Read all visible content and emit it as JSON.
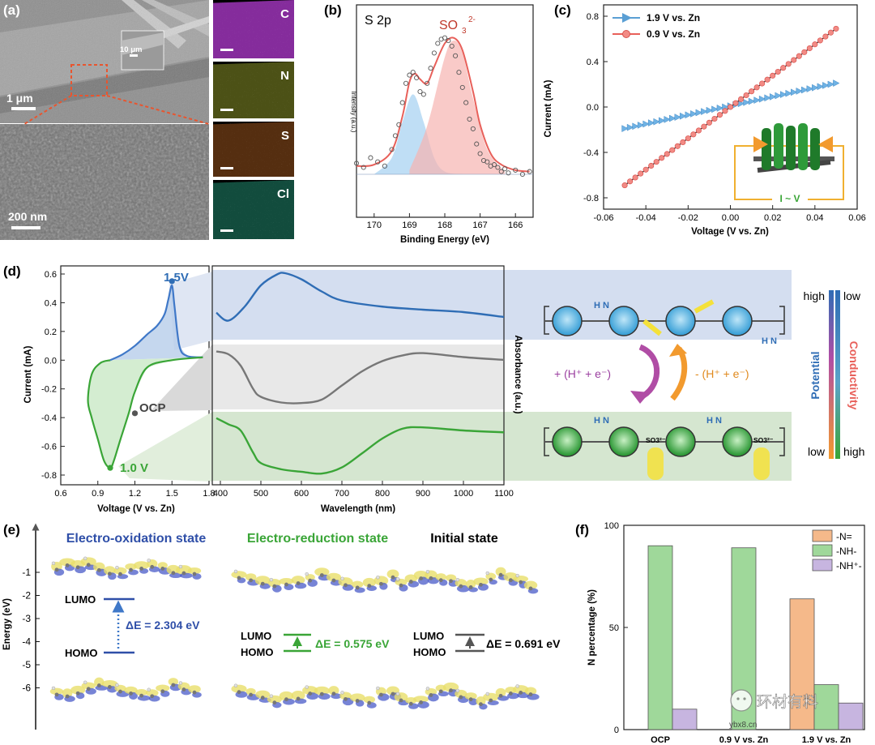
{
  "panel_labels": [
    "(a)",
    "(b)",
    "(c)",
    "(d)",
    "(e)",
    "(f)"
  ],
  "colors": {
    "blue": "#2f6db5",
    "red": "#d9534f",
    "green": "#3aa537",
    "orange": "#f29a2e",
    "purple": "#9b4fa8",
    "lilac": "#b9a3d1",
    "pale_green": "#9fd89a",
    "peach": "#f5b98a"
  },
  "panel_a": {
    "scale_top": "1 μm",
    "scale_inset": "10 μm",
    "scale_bottom": "200 nm",
    "eds_maps": [
      {
        "element": "C",
        "color": "#b13bd0"
      },
      {
        "element": "N",
        "color": "#c9d43a"
      },
      {
        "element": "S",
        "color": "#e07a2a"
      },
      {
        "element": "Cl",
        "color": "#2fc9a0"
      }
    ]
  },
  "panel_b": {
    "title": "S 2p",
    "peak_label": "SO",
    "peak_sub": "3",
    "peak_sup": "2-",
    "ylabel": "Intensity (a.u.)",
    "xlabel": "Binding Energy (eV)"
  },
  "panel_c": {
    "legend_blue": "1.9 V vs. Zn",
    "legend_red": "0.9 V vs. Zn",
    "ylabel": "Current (mA)",
    "xlabel": "Voltage (V vs. Zn)",
    "circuit_label": "I ~ V"
  },
  "panel_d": {
    "ylabel": "Current (mA)",
    "xlabel_left": "Voltage (V vs. Zn)",
    "xlabel_right": "Wavelength (nm)",
    "absorbance_label": "Absorbance (a.u.)",
    "pt_high": "1.5V",
    "pt_ocp": "OCP",
    "pt_low": "1.0 V",
    "arrow_left": "+ (H⁺ + e⁻)",
    "arrow_right": "- (H⁺ + e⁻)",
    "scale_high_left": "high",
    "scale_low_right": "low",
    "scale_low_left": "low",
    "scale_high_right": "high",
    "scale_potential": "Potential",
    "scale_conductivity": "Conductivity",
    "nh_label": "H N",
    "so3": "SO3²⁻"
  },
  "panel_e": {
    "ylabel": "Energy (eV)",
    "state_ox": "Electro-oxidation state",
    "state_red": "Electro-reduction state",
    "state_init": "Initial state",
    "lumo": "LUMO",
    "homo": "HOMO",
    "de_ox": "ΔE = 2.304 eV",
    "de_red": "ΔE = 0.575 eV",
    "de_init": "ΔE = 0.691 eV"
  },
  "panel_f": {
    "ylabel": "N percentage (%)",
    "legend": [
      "-N=",
      "-NH-",
      "-NH⁺-"
    ],
    "watermark_text": "环材有料",
    "watermark_url": "ybx8.cn"
  },
  "chart_data": [
    {
      "id": "b",
      "type": "scatter",
      "title": "S 2p",
      "xlabel": "Binding Energy (eV)",
      "ylabel": "Intensity (a.u.)",
      "xlim": [
        170.5,
        165.5
      ],
      "ylim": [
        0,
        1
      ],
      "xticks": [
        170,
        169,
        168,
        167,
        166
      ],
      "series": [
        {
          "name": "data points",
          "x": [
            170.5,
            170.3,
            170.1,
            169.9,
            169.7,
            169.5,
            169.4,
            169.3,
            169.2,
            169.1,
            169.0,
            168.9,
            168.8,
            168.7,
            168.6,
            168.5,
            168.4,
            168.3,
            168.2,
            168.1,
            168.0,
            167.9,
            167.8,
            167.7,
            167.6,
            167.5,
            167.4,
            167.3,
            167.2,
            167.1,
            167.0,
            166.9,
            166.8,
            166.7,
            166.6,
            166.5,
            166.4,
            166.3,
            166.2,
            166.0,
            165.8,
            165.6
          ],
          "y": [
            0.08,
            0.05,
            0.12,
            0.09,
            0.06,
            0.18,
            0.28,
            0.36,
            0.52,
            0.66,
            0.72,
            0.74,
            0.7,
            0.6,
            0.58,
            0.66,
            0.77,
            0.88,
            0.95,
            0.98,
            0.99,
            0.97,
            0.93,
            0.86,
            0.74,
            0.63,
            0.52,
            0.4,
            0.33,
            0.22,
            0.15,
            0.1,
            0.09,
            0.06,
            0.07,
            0.05,
            0.02,
            0.04,
            0.01,
            0.03,
            0.0,
            0.02
          ]
        },
        {
          "name": "fit envelope",
          "x": [
            170.5,
            170.0,
            169.5,
            169.2,
            169.0,
            168.85,
            168.7,
            168.5,
            168.3,
            168.0,
            167.75,
            167.5,
            167.2,
            167.0,
            166.7,
            166.4,
            166.0,
            165.6
          ],
          "y": [
            0.06,
            0.07,
            0.17,
            0.42,
            0.67,
            0.73,
            0.69,
            0.66,
            0.78,
            0.95,
            0.99,
            0.9,
            0.6,
            0.36,
            0.15,
            0.07,
            0.03,
            0.02
          ]
        },
        {
          "name": "component 1 (blue)",
          "x": [
            170.0,
            169.5,
            169.2,
            168.9,
            168.6,
            168.3,
            168.0,
            167.5
          ],
          "y": [
            0.0,
            0.12,
            0.38,
            0.58,
            0.38,
            0.12,
            0.02,
            0.0
          ]
        },
        {
          "name": "component 2 SO3 2- (red)",
          "x": [
            169.0,
            168.5,
            168.0,
            167.75,
            167.5,
            167.2,
            166.8,
            166.3
          ],
          "y": [
            0.03,
            0.35,
            0.85,
            0.97,
            0.88,
            0.55,
            0.18,
            0.02
          ]
        }
      ]
    },
    {
      "id": "c",
      "type": "line",
      "xlabel": "Voltage (V vs. Zn)",
      "ylabel": "Current (mA)",
      "xlim": [
        -0.06,
        0.06
      ],
      "ylim": [
        -0.9,
        0.9
      ],
      "xticks": [
        -0.06,
        -0.04,
        -0.02,
        0.0,
        0.02,
        0.04,
        0.06
      ],
      "yticks": [
        -0.8,
        -0.4,
        0.0,
        0.4,
        0.8
      ],
      "series": [
        {
          "name": "1.9 V vs. Zn",
          "x": [
            -0.05,
            0.05
          ],
          "y": [
            -0.19,
            0.21
          ]
        },
        {
          "name": "0.9 V vs. Zn",
          "x": [
            -0.05,
            0.05
          ],
          "y": [
            -0.69,
            0.69
          ]
        }
      ]
    },
    {
      "id": "d-cv",
      "type": "line",
      "xlabel": "Voltage (V vs. Zn)",
      "ylabel": "Current (mA)",
      "xlim": [
        0.6,
        1.8
      ],
      "ylim": [
        -0.8,
        0.6
      ],
      "xticks": [
        0.6,
        0.9,
        1.2,
        1.5,
        1.8
      ],
      "yticks": [
        -0.8,
        -0.6,
        -0.4,
        -0.2,
        0.0,
        0.2,
        0.4,
        0.6
      ],
      "series": [
        {
          "name": "oxidation branch",
          "x": [
            1.0,
            1.1,
            1.2,
            1.3,
            1.38,
            1.44,
            1.47,
            1.5,
            1.52,
            1.56,
            1.62,
            1.75
          ],
          "y": [
            0.0,
            0.04,
            0.1,
            0.18,
            0.24,
            0.32,
            0.42,
            0.52,
            0.38,
            0.1,
            0.03,
            0.02
          ]
        },
        {
          "name": "reduction branch",
          "x": [
            1.75,
            1.5,
            1.3,
            1.2,
            1.15,
            1.08,
            1.03,
            1.0,
            0.95,
            0.9,
            0.85,
            0.82,
            0.85,
            0.92,
            1.0
          ],
          "y": [
            0.02,
            0.0,
            -0.05,
            -0.22,
            -0.37,
            -0.56,
            -0.7,
            -0.75,
            -0.7,
            -0.55,
            -0.4,
            -0.28,
            -0.1,
            -0.02,
            0.0
          ]
        },
        {
          "name": "points",
          "x": [
            1.5,
            1.2,
            1.0
          ],
          "y": [
            0.55,
            -0.37,
            -0.75
          ],
          "labels": [
            "1.5V",
            "OCP",
            "1.0 V"
          ]
        }
      ]
    },
    {
      "id": "d-uv",
      "type": "line",
      "xlabel": "Wavelength (nm)",
      "ylabel": "Absorbance (a.u.)",
      "xlim": [
        380,
        1100
      ],
      "xticks": [
        400,
        500,
        600,
        700,
        800,
        900,
        1000,
        1100
      ],
      "series": [
        {
          "name": "1.5 V",
          "x": [
            390,
            420,
            460,
            500,
            540,
            560,
            600,
            650,
            700,
            800,
            900,
            1000,
            1100
          ],
          "y": [
            0.35,
            0.22,
            0.45,
            0.8,
            0.98,
            1.0,
            0.9,
            0.7,
            0.55,
            0.45,
            0.4,
            0.36,
            0.28
          ]
        },
        {
          "name": "OCP",
          "x": [
            390,
            420,
            450,
            480,
            500,
            550,
            600,
            650,
            700,
            750,
            800,
            850,
            900,
            1000,
            1100
          ],
          "y": [
            0.95,
            0.9,
            0.7,
            0.3,
            0.15,
            0.05,
            0.04,
            0.1,
            0.35,
            0.6,
            0.78,
            0.88,
            0.92,
            0.85,
            0.8
          ]
        },
        {
          "name": "1.0 V",
          "x": [
            390,
            420,
            450,
            480,
            500,
            550,
            600,
            650,
            700,
            750,
            800,
            850,
            900,
            1000,
            1100
          ],
          "y": [
            0.95,
            0.85,
            0.75,
            0.4,
            0.22,
            0.12,
            0.08,
            0.05,
            0.15,
            0.38,
            0.62,
            0.78,
            0.8,
            0.75,
            0.72
          ]
        }
      ]
    },
    {
      "id": "f",
      "type": "bar",
      "ylabel": "N percentage (%)",
      "ylim": [
        0,
        100
      ],
      "yticks": [
        0,
        50,
        100
      ],
      "categories": [
        "OCP",
        "0.9 V vs. Zn",
        "1.9 V vs. Zn"
      ],
      "series": [
        {
          "name": "-N=",
          "values": [
            0,
            0,
            64
          ]
        },
        {
          "name": "-NH-",
          "values": [
            90,
            89,
            22
          ]
        },
        {
          "name": "-NH⁺-",
          "values": [
            10,
            0,
            13
          ]
        }
      ]
    }
  ]
}
